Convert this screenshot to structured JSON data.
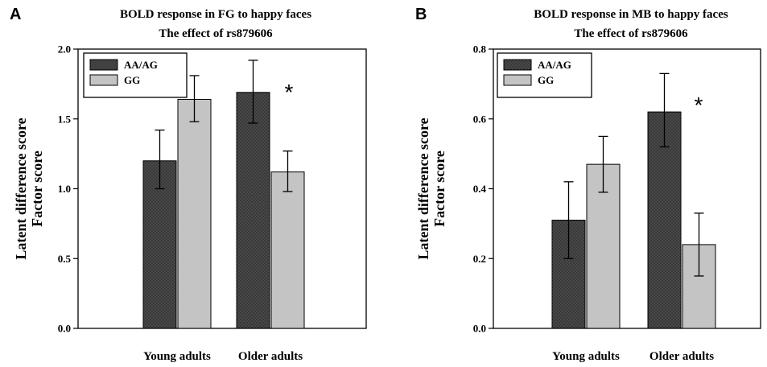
{
  "colors": {
    "dark": "#3a3a3a",
    "light": "#c4c4c4",
    "axis": "#000000"
  },
  "chart_data": [
    {
      "type": "bar",
      "panel": "A",
      "title": "BOLD response in FG to happy faces",
      "subtitle": "The effect of rs879606",
      "ylabel_line1": "Latent difference score",
      "ylabel_line2": "Factor score",
      "categories": [
        "Young adults",
        "Older adults"
      ],
      "ylim": [
        0,
        2.0
      ],
      "yticks": [
        0.0,
        0.5,
        1.0,
        1.5,
        2.0
      ],
      "ytick_labels": [
        "0.0",
        "0.5",
        "1.0",
        "1.5",
        "2.0"
      ],
      "legend": "top-left",
      "series": [
        {
          "name": "AA/AG",
          "values": [
            1.2,
            1.69
          ],
          "err_low": [
            1.0,
            1.47
          ],
          "err_high": [
            1.42,
            1.92
          ]
        },
        {
          "name": "GG",
          "values": [
            1.64,
            1.12
          ],
          "err_low": [
            1.48,
            0.98
          ],
          "err_high": [
            1.81,
            1.27
          ]
        }
      ],
      "annotation": "*"
    },
    {
      "type": "bar",
      "panel": "B",
      "title": "BOLD response in MB to happy faces",
      "subtitle": "The effect of rs879606",
      "ylabel_line1": "Latent difference score",
      "ylabel_line2": "Factor score",
      "categories": [
        "Young adults",
        "Older adults"
      ],
      "ylim": [
        0,
        0.8
      ],
      "yticks": [
        0.0,
        0.2,
        0.4,
        0.6,
        0.8
      ],
      "ytick_labels": [
        "0.0",
        "0.2",
        "0.4",
        "0.6",
        "0.8"
      ],
      "legend": "top-left",
      "series": [
        {
          "name": "AA/AG",
          "values": [
            0.31,
            0.62
          ],
          "err_low": [
            0.2,
            0.52
          ],
          "err_high": [
            0.42,
            0.73
          ]
        },
        {
          "name": "GG",
          "values": [
            0.47,
            0.24
          ],
          "err_low": [
            0.39,
            0.15
          ],
          "err_high": [
            0.55,
            0.33
          ]
        }
      ],
      "annotation": "*"
    }
  ]
}
